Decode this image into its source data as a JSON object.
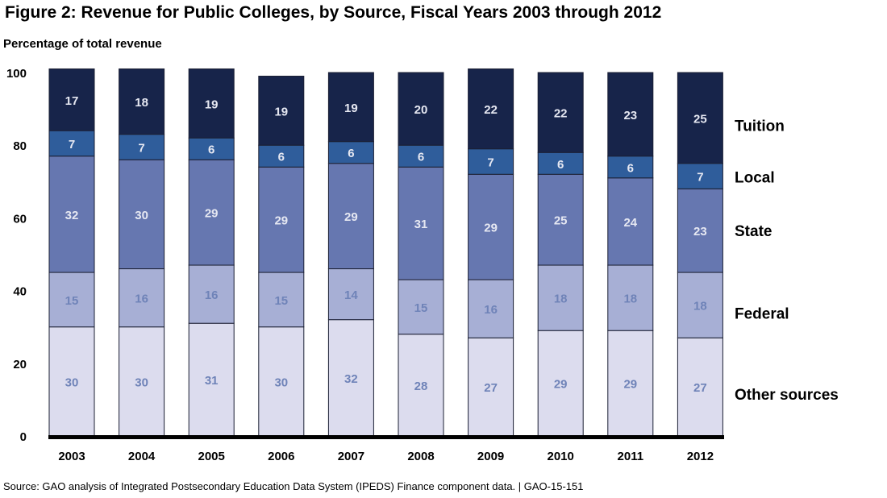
{
  "title": "Figure 2: Revenue for Public Colleges, by Source, Fiscal Years 2003 through 2012",
  "source": "Source: GAO analysis of Integrated Postsecondary Education Data System (IPEDS) Finance component data.  |  GAO-15-151",
  "colors": {
    "Other sources": "#dcdcee",
    "Federal": "#a7afd5",
    "State": "#6677b0",
    "Local": "#2f5d9b",
    "Tuition": "#17244a",
    "label_light": "#e6e8f2",
    "label_dark": "#6f83b8"
  },
  "chart_data": {
    "type": "bar",
    "stacked": true,
    "ylabel": "Percentage of total revenue",
    "ylim": [
      0,
      100
    ],
    "yticks": [
      0,
      20,
      40,
      60,
      80,
      100
    ],
    "grid": false,
    "legend_position": "right, aligned with segments",
    "categories": [
      "2003",
      "2004",
      "2005",
      "2006",
      "2007",
      "2008",
      "2009",
      "2010",
      "2011",
      "2012"
    ],
    "series": [
      {
        "name": "Other sources",
        "values": [
          30,
          30,
          31,
          30,
          32,
          28,
          27,
          29,
          29,
          27
        ]
      },
      {
        "name": "Federal",
        "values": [
          15,
          16,
          16,
          15,
          14,
          15,
          16,
          18,
          18,
          18
        ]
      },
      {
        "name": "State",
        "values": [
          32,
          30,
          29,
          29,
          29,
          31,
          29,
          25,
          24,
          23
        ]
      },
      {
        "name": "Local",
        "values": [
          7,
          7,
          6,
          6,
          6,
          6,
          7,
          6,
          6,
          7
        ]
      },
      {
        "name": "Tuition",
        "values": [
          17,
          18,
          19,
          19,
          19,
          20,
          22,
          22,
          23,
          25
        ]
      }
    ]
  }
}
